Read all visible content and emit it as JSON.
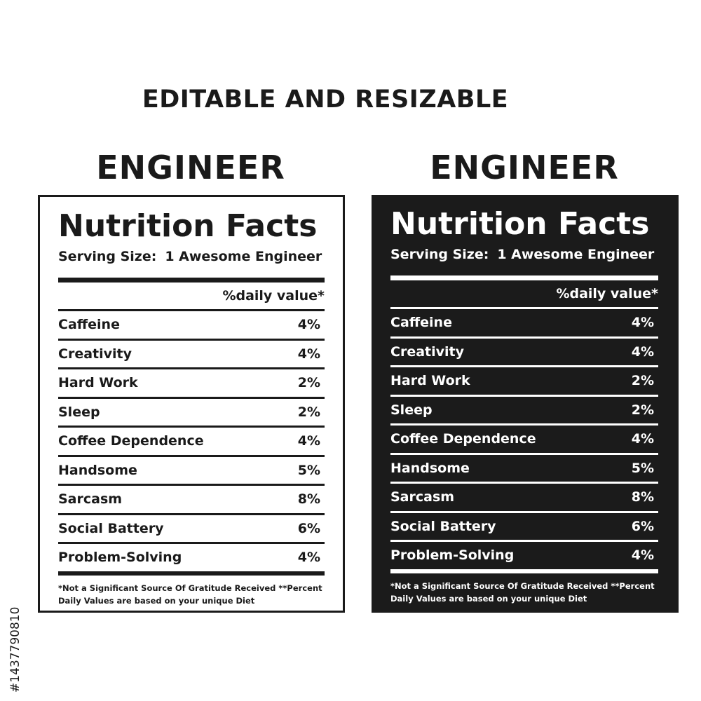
{
  "headline": "EDITABLE AND RESIZABLE",
  "labels": [
    {
      "variant": "light",
      "profession": "ENGINEER",
      "title": "Nutrition Facts",
      "serving_label": "Serving Size:",
      "serving_value": "1 Awesome Engineer",
      "daily_value_header": "%daily value*",
      "rows": [
        {
          "name": "Caffeine",
          "value": "4%"
        },
        {
          "name": "Creativity",
          "value": "4%"
        },
        {
          "name": "Hard Work",
          "value": "2%"
        },
        {
          "name": "Sleep",
          "value": "2%"
        },
        {
          "name": "Coffee Dependence",
          "value": "4%"
        },
        {
          "name": "Handsome",
          "value": "5%"
        },
        {
          "name": "Sarcasm",
          "value": "8%"
        },
        {
          "name": "Social Battery",
          "value": "6%"
        },
        {
          "name": "Problem-Solving",
          "value": "4%"
        }
      ],
      "footnote_line1": "*Not a Significant Source Of Gratitude Received **Percent",
      "footnote_line2": "Daily Values are based on your  unique Diet"
    },
    {
      "variant": "dark",
      "profession": "ENGINEER",
      "title": "Nutrition Facts",
      "serving_label": "Serving Size:",
      "serving_value": "1 Awesome Engineer",
      "daily_value_header": "%daily value*",
      "rows": [
        {
          "name": "Caffeine",
          "value": "4%"
        },
        {
          "name": "Creativity",
          "value": "4%"
        },
        {
          "name": "Hard Work",
          "value": "2%"
        },
        {
          "name": "Sleep",
          "value": "2%"
        },
        {
          "name": "Coffee Dependence",
          "value": "4%"
        },
        {
          "name": "Handsome",
          "value": "5%"
        },
        {
          "name": "Sarcasm",
          "value": "8%"
        },
        {
          "name": "Social Battery",
          "value": "6%"
        },
        {
          "name": "Problem-Solving",
          "value": "4%"
        }
      ],
      "footnote_line1": "*Not a Significant Source Of Gratitude Received **Percent",
      "footnote_line2": "Daily Values are based on your  unique Diet"
    }
  ],
  "watermark_id": "#1437790810",
  "colors": {
    "ink": "#1a1a1a",
    "dark_panel": "#1b1b1b",
    "background": "#ffffff"
  }
}
